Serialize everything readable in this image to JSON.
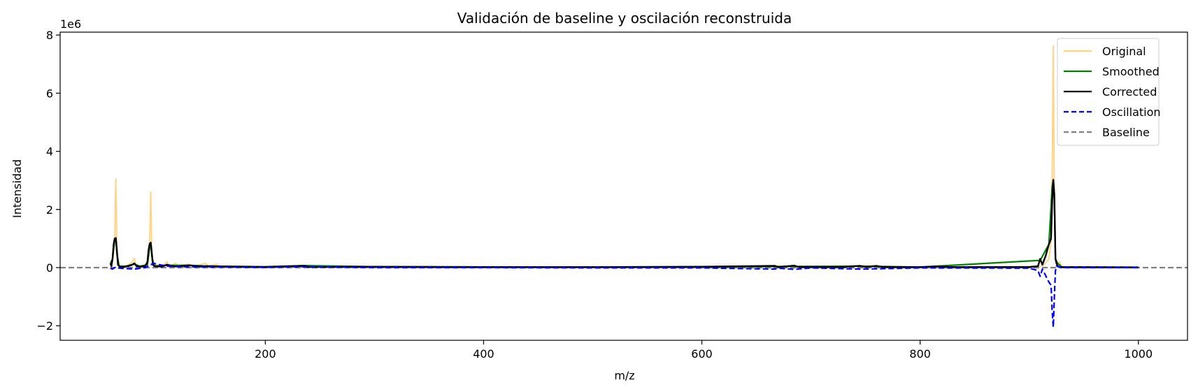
{
  "chart_data": {
    "type": "line",
    "title": "Validación de baseline y oscilación reconstruida",
    "xlabel": "m/z",
    "ylabel": "Intensidad",
    "y_offset_label": "1e6",
    "xlim": [
      12,
      1045
    ],
    "ylim": [
      -2.5,
      8.1
    ],
    "y_scale": 1000000,
    "x_ticks": [
      200,
      400,
      600,
      800,
      1000
    ],
    "x_tick_labels": [
      "200",
      "400",
      "600",
      "800",
      "1000"
    ],
    "y_ticks": [
      -2,
      0,
      2,
      4,
      6,
      8
    ],
    "y_tick_labels": [
      "−2",
      "0",
      "2",
      "4",
      "6",
      "8"
    ],
    "grid": false,
    "legend_position": "top-right",
    "baseline_value": 0,
    "series": [
      {
        "name": "Original",
        "color": "#ffd27f",
        "style": "solid",
        "points": [
          [
            58,
            0.05
          ],
          [
            60,
            0.2
          ],
          [
            62,
            0.9
          ],
          [
            63,
            3.05
          ],
          [
            64,
            0.6
          ],
          [
            65,
            0.05
          ],
          [
            70,
            0.02
          ],
          [
            75,
            0.1
          ],
          [
            78,
            0.2
          ],
          [
            80,
            0.32
          ],
          [
            82,
            0.05
          ],
          [
            88,
            0.05
          ],
          [
            92,
            0.1
          ],
          [
            94,
            0.8
          ],
          [
            95,
            2.6
          ],
          [
            96,
            0.4
          ],
          [
            97,
            0.05
          ],
          [
            100,
            0.1
          ],
          [
            105,
            0.05
          ],
          [
            110,
            0.2
          ],
          [
            112,
            0.05
          ],
          [
            118,
            0.15
          ],
          [
            120,
            0.05
          ],
          [
            130,
            0.12
          ],
          [
            135,
            0.05
          ],
          [
            145,
            0.15
          ],
          [
            148,
            0.05
          ],
          [
            155,
            0.12
          ],
          [
            158,
            0.04
          ],
          [
            170,
            0.06
          ],
          [
            200,
            0.03
          ],
          [
            236,
            0.08
          ],
          [
            240,
            0.02
          ],
          [
            300,
            0.03
          ],
          [
            400,
            0.02
          ],
          [
            500,
            0.02
          ],
          [
            600,
            0.03
          ],
          [
            667,
            0.05
          ],
          [
            685,
            0.06
          ],
          [
            700,
            0.02
          ],
          [
            745,
            0.06
          ],
          [
            760,
            0.05
          ],
          [
            800,
            0.02
          ],
          [
            912,
            0.05
          ],
          [
            916,
            0.2
          ],
          [
            918,
            0.3
          ],
          [
            920,
            0.9
          ],
          [
            921,
            3.2
          ],
          [
            922,
            7.62
          ],
          [
            923,
            2.0
          ],
          [
            924,
            0.4
          ],
          [
            925,
            0.05
          ],
          [
            928,
            0.2
          ],
          [
            930,
            0.02
          ],
          [
            1000,
            0.01
          ]
        ]
      },
      {
        "name": "Smoothed",
        "color": "#008000",
        "style": "solid",
        "points": [
          [
            58,
            0.15
          ],
          [
            60,
            0.3
          ],
          [
            62,
            0.95
          ],
          [
            63,
            1.02
          ],
          [
            64,
            0.5
          ],
          [
            66,
            0.05
          ],
          [
            75,
            0.05
          ],
          [
            80,
            0.12
          ],
          [
            85,
            0.05
          ],
          [
            92,
            0.1
          ],
          [
            94,
            0.7
          ],
          [
            95,
            0.86
          ],
          [
            96,
            0.4
          ],
          [
            98,
            0.05
          ],
          [
            110,
            0.08
          ],
          [
            130,
            0.08
          ],
          [
            150,
            0.05
          ],
          [
            200,
            0.03
          ],
          [
            236,
            0.07
          ],
          [
            300,
            0.03
          ],
          [
            500,
            0.02
          ],
          [
            600,
            0.02
          ],
          [
            685,
            0.04
          ],
          [
            745,
            0.05
          ],
          [
            800,
            0.02
          ],
          [
            910,
            0.25
          ],
          [
            918,
            0.8
          ],
          [
            921,
            2.8
          ],
          [
            922,
            3.0
          ],
          [
            923,
            2.3
          ],
          [
            924,
            0.3
          ],
          [
            926,
            0.15
          ],
          [
            930,
            0.02
          ],
          [
            1000,
            0.01
          ]
        ]
      },
      {
        "name": "Corrected",
        "color": "#000000",
        "style": "solid",
        "points": [
          [
            58,
            0.15
          ],
          [
            59,
            0.05
          ],
          [
            60,
            0.3
          ],
          [
            61,
            0.8
          ],
          [
            62,
            1.0
          ],
          [
            63,
            1.02
          ],
          [
            64,
            0.6
          ],
          [
            65,
            0.1
          ],
          [
            67,
            0.02
          ],
          [
            72,
            0.03
          ],
          [
            76,
            0.08
          ],
          [
            78,
            0.1
          ],
          [
            80,
            0.15
          ],
          [
            82,
            0.05
          ],
          [
            86,
            0.03
          ],
          [
            90,
            0.05
          ],
          [
            92,
            0.2
          ],
          [
            93,
            0.6
          ],
          [
            94,
            0.82
          ],
          [
            95,
            0.86
          ],
          [
            96,
            0.5
          ],
          [
            97,
            0.1
          ],
          [
            99,
            0.05
          ],
          [
            105,
            0.03
          ],
          [
            110,
            0.1
          ],
          [
            115,
            0.05
          ],
          [
            120,
            0.04
          ],
          [
            130,
            0.08
          ],
          [
            140,
            0.04
          ],
          [
            150,
            0.05
          ],
          [
            160,
            0.04
          ],
          [
            170,
            0.03
          ],
          [
            200,
            0.02
          ],
          [
            236,
            0.06
          ],
          [
            240,
            0.02
          ],
          [
            300,
            0.03
          ],
          [
            400,
            0.02
          ],
          [
            500,
            0.02
          ],
          [
            600,
            0.03
          ],
          [
            667,
            0.06
          ],
          [
            670,
            0.02
          ],
          [
            685,
            0.07
          ],
          [
            688,
            0.02
          ],
          [
            730,
            0.02
          ],
          [
            740,
            0.05
          ],
          [
            745,
            0.06
          ],
          [
            750,
            0.02
          ],
          [
            760,
            0.06
          ],
          [
            765,
            0.02
          ],
          [
            800,
            0.02
          ],
          [
            815,
            0.04
          ],
          [
            830,
            0.02
          ],
          [
            900,
            0.02
          ],
          [
            908,
            0.05
          ],
          [
            910,
            0.3
          ],
          [
            912,
            0.1
          ],
          [
            915,
            0.4
          ],
          [
            918,
            0.8
          ],
          [
            920,
            1.0
          ],
          [
            921,
            2.3
          ],
          [
            922,
            3.02
          ],
          [
            923,
            2.5
          ],
          [
            924,
            0.3
          ],
          [
            925,
            0.15
          ],
          [
            926,
            0.05
          ],
          [
            928,
            0.02
          ],
          [
            1000,
            0.01
          ]
        ]
      },
      {
        "name": "Oscillation",
        "color": "#0000ff",
        "style": "dashed",
        "points": [
          [
            58,
            -0.02
          ],
          [
            60,
            -0.05
          ],
          [
            62,
            0.0
          ],
          [
            70,
            -0.03
          ],
          [
            80,
            -0.05
          ],
          [
            90,
            0.0
          ],
          [
            95,
            0.1
          ],
          [
            98,
            0.15
          ],
          [
            100,
            0.12
          ],
          [
            110,
            0.05
          ],
          [
            120,
            0.03
          ],
          [
            150,
            0.02
          ],
          [
            200,
            0.01
          ],
          [
            236,
            0.03
          ],
          [
            300,
            0.0
          ],
          [
            400,
            0.0
          ],
          [
            500,
            -0.01
          ],
          [
            600,
            -0.01
          ],
          [
            667,
            -0.05
          ],
          [
            670,
            -0.02
          ],
          [
            685,
            -0.06
          ],
          [
            700,
            -0.01
          ],
          [
            745,
            -0.05
          ],
          [
            760,
            -0.04
          ],
          [
            800,
            -0.01
          ],
          [
            900,
            -0.02
          ],
          [
            908,
            -0.1
          ],
          [
            910,
            -0.3
          ],
          [
            912,
            -0.05
          ],
          [
            914,
            -0.2
          ],
          [
            916,
            -0.35
          ],
          [
            918,
            -0.5
          ],
          [
            920,
            -0.6
          ],
          [
            921,
            -1.5
          ],
          [
            922,
            -2.05
          ],
          [
            923,
            -1.0
          ],
          [
            924,
            -0.1
          ],
          [
            925,
            0.05
          ],
          [
            930,
            0.0
          ],
          [
            1000,
            0.0
          ]
        ]
      },
      {
        "name": "Baseline",
        "color": "#808080",
        "style": "dashed",
        "points": []
      }
    ]
  }
}
